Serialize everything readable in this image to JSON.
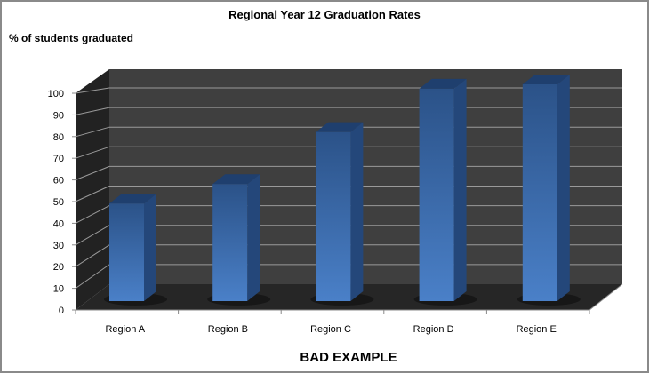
{
  "chart_data": {
    "type": "bar",
    "title": "Regional Year 12 Graduation Rates",
    "ylabel": "% of students graduated",
    "xlabel": "",
    "categories": [
      "Region A",
      "Region B",
      "Region C",
      "Region D",
      "Region E"
    ],
    "values": [
      45,
      54,
      78,
      98,
      100
    ],
    "ylim": [
      0,
      100
    ],
    "yticks": [
      0,
      10,
      20,
      30,
      40,
      50,
      60,
      70,
      80,
      90,
      100
    ],
    "grid": true,
    "style": "3d-column",
    "bar_color": "#3f6fae",
    "wall_color": "#3f3f3f",
    "floor_color": "#262626",
    "legend": "none"
  },
  "caption": "BAD EXAMPLE"
}
